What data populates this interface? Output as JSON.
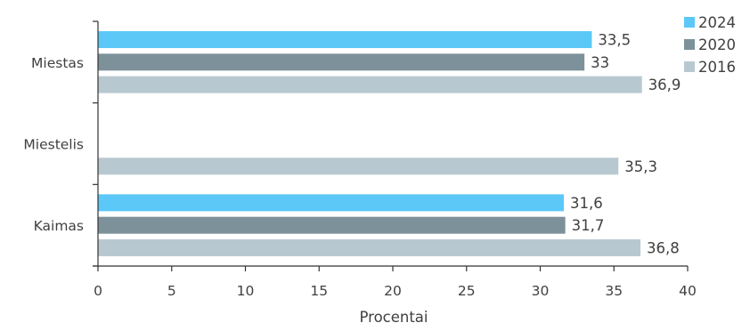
{
  "chart_data": {
    "type": "bar",
    "orientation": "horizontal",
    "title": "",
    "xlabel": "Procentai",
    "ylabel": "",
    "xlim": [
      0,
      40
    ],
    "xticks": [
      "0",
      "5",
      "10",
      "15",
      "20",
      "25",
      "30",
      "35",
      "40"
    ],
    "categories": [
      "Miestas",
      "Miestelis",
      "Kaimas"
    ],
    "series": [
      {
        "name": "2024",
        "color": "#5bc8f8",
        "values": [
          33.5,
          null,
          31.6
        ],
        "labels": [
          "33,5",
          "",
          "31,6"
        ]
      },
      {
        "name": "2020",
        "color": "#7d919b",
        "values": [
          33,
          null,
          31.7
        ],
        "labels": [
          "33",
          "",
          "31,7"
        ]
      },
      {
        "name": "2016",
        "color": "#b8c8d0",
        "values": [
          36.9,
          35.3,
          36.8
        ],
        "labels": [
          "36,9",
          "35,3",
          "36,8"
        ]
      }
    ],
    "legend_position": "top-right",
    "grid": false
  }
}
